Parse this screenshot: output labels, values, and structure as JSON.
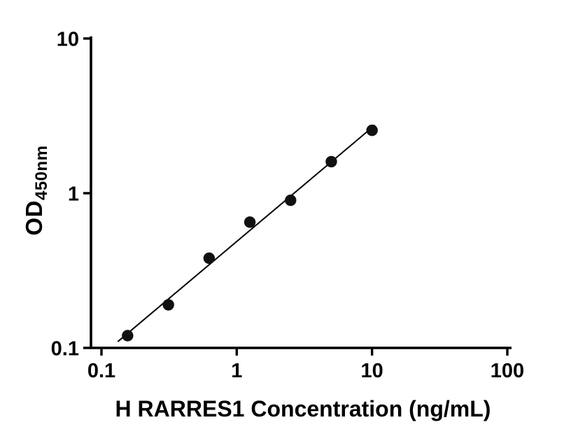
{
  "chart_data": {
    "type": "scatter",
    "title": "",
    "xlabel": "H RARRES1 Concentration (ng/mL)",
    "ylabel_main": "OD",
    "ylabel_sub": "450nm",
    "xscale": "log",
    "yscale": "log",
    "xlim": [
      0.1,
      100
    ],
    "ylim": [
      0.1,
      10
    ],
    "grid": false,
    "legend": null,
    "x_ticks": [
      {
        "value": 0.1,
        "label": "0.1"
      },
      {
        "value": 1,
        "label": "1"
      },
      {
        "value": 10,
        "label": "10"
      },
      {
        "value": 100,
        "label": "100"
      }
    ],
    "y_ticks": [
      {
        "value": 0.1,
        "label": "0.1"
      },
      {
        "value": 1,
        "label": "1"
      },
      {
        "value": 10,
        "label": "10"
      }
    ],
    "points": [
      {
        "x": 0.156,
        "y": 0.12
      },
      {
        "x": 0.3125,
        "y": 0.19
      },
      {
        "x": 0.625,
        "y": 0.38
      },
      {
        "x": 1.25,
        "y": 0.65
      },
      {
        "x": 2.5,
        "y": 0.9
      },
      {
        "x": 5,
        "y": 1.6
      },
      {
        "x": 10,
        "y": 2.55
      }
    ],
    "fit_line": {
      "x_start": 0.132,
      "x_end": 10.5,
      "slope": 0.7364,
      "intercept": -0.312
    },
    "marker_color": "#111111",
    "line_color": "#000000",
    "axis_color": "#000000"
  }
}
